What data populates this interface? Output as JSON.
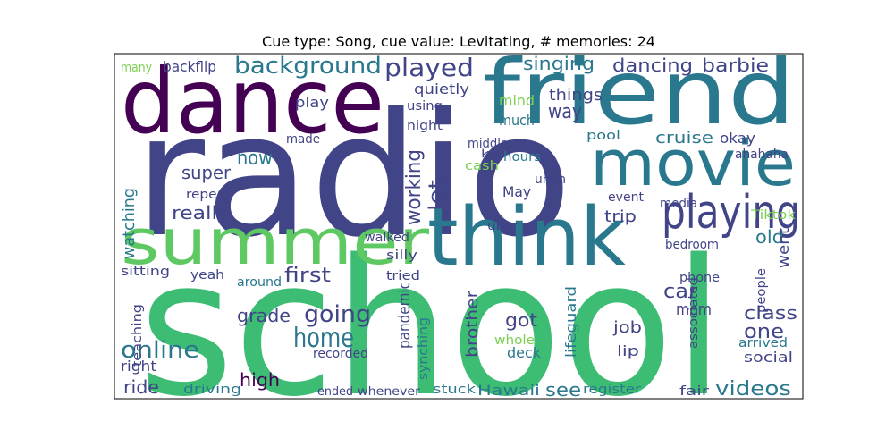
{
  "chart_data": {
    "type": "wordcloud",
    "title": "Cue type: Song, cue value: Levitating, # memories: 24",
    "words": [
      "radio",
      "school",
      "friend",
      "dance",
      "movie",
      "summer",
      "think",
      "playing",
      "background",
      "played",
      "singing",
      "dancing",
      "barbie",
      "home",
      "going",
      "online",
      "grade",
      "ride",
      "driving",
      "high",
      "videos",
      "Hawaii",
      "see",
      "register",
      "stuck",
      "fair",
      "ended",
      "whenever",
      "cruise",
      "okay",
      "ahahaha",
      "now",
      "super",
      "really",
      "repeat",
      "car",
      "mom",
      "one",
      "class",
      "things",
      "way",
      "pool",
      "mind",
      "much",
      "trip",
      "old",
      "first",
      "around",
      "sitting",
      "yeah",
      "play",
      "quietly",
      "using",
      "night",
      "made",
      "silly",
      "tried",
      "walked",
      "got",
      "job",
      "lip",
      "deck",
      "whole",
      "recorded",
      "social",
      "arrived",
      "right",
      "media",
      "event",
      "May",
      "hours",
      "uhhh",
      "middle",
      "cash",
      "kid",
      "bedroom",
      "phone",
      "Tiktok",
      "uber",
      "backflip",
      "many",
      "working",
      "lot",
      "watching",
      "pandemic",
      "brother",
      "lifeguard",
      "associated",
      "teaching",
      "synching",
      "went",
      "people"
    ]
  }
}
